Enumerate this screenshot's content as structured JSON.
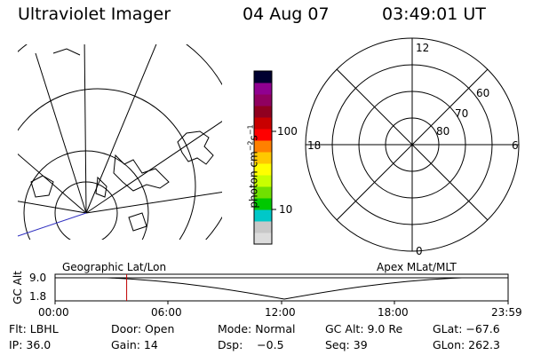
{
  "header": {
    "instrument": "Ultraviolet Imager",
    "date": "04 Aug 07",
    "time": "03:49:01 UT"
  },
  "colorbar": {
    "unit_label": "photon cm",
    "unit_exp1": "−2",
    "unit_s": "s",
    "unit_exp2": "−1",
    "tick_100": "100",
    "tick_10": "10",
    "colors": [
      "#dcdcdc",
      "#c8c8c8",
      "#00c8c8",
      "#00c800",
      "#70e000",
      "#c8ff00",
      "#ffff00",
      "#ffc800",
      "#ff8000",
      "#ff0000",
      "#c80000",
      "#900020",
      "#900060",
      "#900090",
      "#000030"
    ]
  },
  "polar_plot": {
    "mlt_top": "12",
    "mlt_left": "18",
    "mlt_right": "6",
    "mlt_bottom": "0",
    "lat_60": "60",
    "lat_70": "70",
    "lat_80": "80"
  },
  "altitude_panel": {
    "left_title": "Geographic Lat/Lon",
    "right_title": "Apex MLat/MLT",
    "axis_label": "GC Alt",
    "y_top": "9.0",
    "y_bottom": "1.8",
    "x_ticks": [
      "00:00",
      "06:00",
      "12:00",
      "18:00",
      "23:59"
    ],
    "current_time_fraction": 0.158
  },
  "info": {
    "filter": "Flt: LBHL",
    "door": "Door: Open",
    "mode": "Mode: Normal",
    "gc_alt": "GC Alt: 9.0 Re",
    "glat": "GLat: −67.6",
    "ip": "IP: 36.0",
    "gain": "Gain: 14",
    "dsp": "Dsp:    −0.5",
    "seq": "Seq: 39",
    "glon": "GLon: 262.3"
  }
}
